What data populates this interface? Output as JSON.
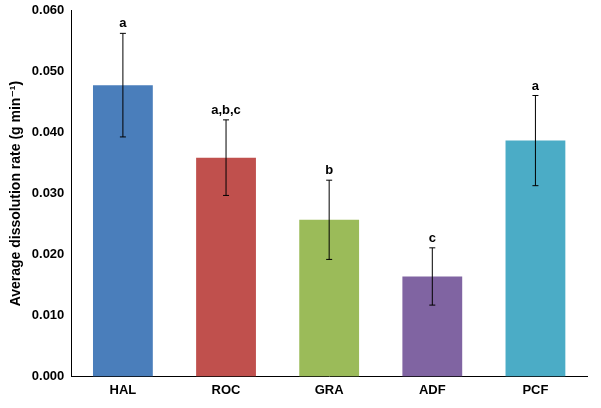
{
  "chart_data": {
    "type": "bar",
    "y_label": "Average dissolution rate (g min⁻¹)",
    "categories": [
      "HAL",
      "ROC",
      "GRA",
      "ADF",
      "PCF"
    ],
    "values": [
      0.0478,
      0.0359,
      0.0257,
      0.0164,
      0.0387
    ],
    "errors": [
      0.0085,
      0.0062,
      0.0065,
      0.0047,
      0.0074
    ],
    "annotations": [
      "a",
      "a,b,c",
      "b",
      "c",
      "a"
    ],
    "colors": [
      "#4a7ebb",
      "#c0504d",
      "#9bbb59",
      "#8064a2",
      "#4bacc6"
    ],
    "ylim": [
      0,
      0.06
    ],
    "yticks": [
      {
        "value": 0,
        "label": "0.000"
      },
      {
        "value": 0.01,
        "label": "0.010"
      },
      {
        "value": 0.02,
        "label": "0.020"
      },
      {
        "value": 0.03,
        "label": "0.030"
      },
      {
        "value": 0.04,
        "label": "0.040"
      },
      {
        "value": 0.05,
        "label": "0.050"
      },
      {
        "value": 0.06,
        "label": "0.060"
      }
    ],
    "grid": false
  }
}
